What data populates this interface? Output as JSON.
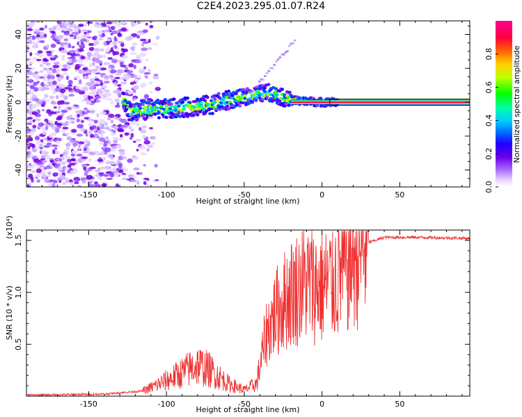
{
  "title": "C2E4.2023.295.01.07.R24",
  "chart_data": [
    {
      "type": "heatmap",
      "xlabel": "Height of straight line (km)",
      "ylabel": "Frequency (Hz)",
      "xlim": [
        -190,
        95
      ],
      "ylim": [
        -50,
        48
      ],
      "xticks": [
        -150,
        -100,
        -50,
        0,
        50
      ],
      "yticks": [
        -40,
        -20,
        0,
        20,
        40
      ],
      "colorbar": {
        "label": "Normalized spectral amplitude",
        "range": [
          0.0,
          1.0
        ],
        "ticks": [
          0.0,
          0.2,
          0.4,
          0.6,
          0.8
        ],
        "colormap": [
          "#ffffff",
          "#c8a0ff",
          "#7a00e6",
          "#1a00ff",
          "#00c8ff",
          "#00ff40",
          "#ffff00",
          "#ff9000",
          "#ff0060"
        ]
      },
      "features": {
        "noise_region_x": [
          -190,
          -115
        ],
        "signal_trend": [
          {
            "x": -125,
            "y": -5
          },
          {
            "x": -100,
            "y": -4
          },
          {
            "x": -75,
            "y": -2
          },
          {
            "x": -50,
            "y": 3
          },
          {
            "x": -35,
            "y": 6
          },
          {
            "x": -20,
            "y": 1
          },
          {
            "x": 0,
            "y": 0
          },
          {
            "x": 95,
            "y": 0
          }
        ],
        "steady_line_x": [
          5,
          95
        ]
      }
    },
    {
      "type": "line",
      "xlabel": "Height of straight line (km)",
      "ylabel": "SNR (10 * v/v)",
      "y_multiplier": "(x10⁴)",
      "xlim": [
        -190,
        95
      ],
      "ylim": [
        0,
        1.6
      ],
      "xticks": [
        -150,
        -100,
        -50,
        0,
        50
      ],
      "yticks": [
        0.5,
        1.0,
        1.5
      ],
      "ytick_labels": [
        "0.5",
        "1.0",
        "1.5"
      ],
      "color": "#f03030",
      "series": [
        {
          "values_envelope": [
            {
              "x": -190,
              "y": 0.01
            },
            {
              "x": -140,
              "y": 0.02
            },
            {
              "x": -115,
              "y": 0.05
            },
            {
              "x": -100,
              "y": 0.15
            },
            {
              "x": -80,
              "y": 0.3
            },
            {
              "x": -72,
              "y": 0.25
            },
            {
              "x": -60,
              "y": 0.12
            },
            {
              "x": -50,
              "y": 0.06
            },
            {
              "x": -42,
              "y": 0.12
            },
            {
              "x": -36,
              "y": 0.6
            },
            {
              "x": -30,
              "y": 0.8
            },
            {
              "x": -20,
              "y": 1.0
            },
            {
              "x": -10,
              "y": 1.1
            },
            {
              "x": 0,
              "y": 1.05
            },
            {
              "x": 10,
              "y": 1.15
            },
            {
              "x": 20,
              "y": 1.35
            },
            {
              "x": 30,
              "y": 1.48
            },
            {
              "x": 40,
              "y": 1.53
            },
            {
              "x": 60,
              "y": 1.53
            },
            {
              "x": 95,
              "y": 1.52
            }
          ]
        }
      ]
    }
  ]
}
